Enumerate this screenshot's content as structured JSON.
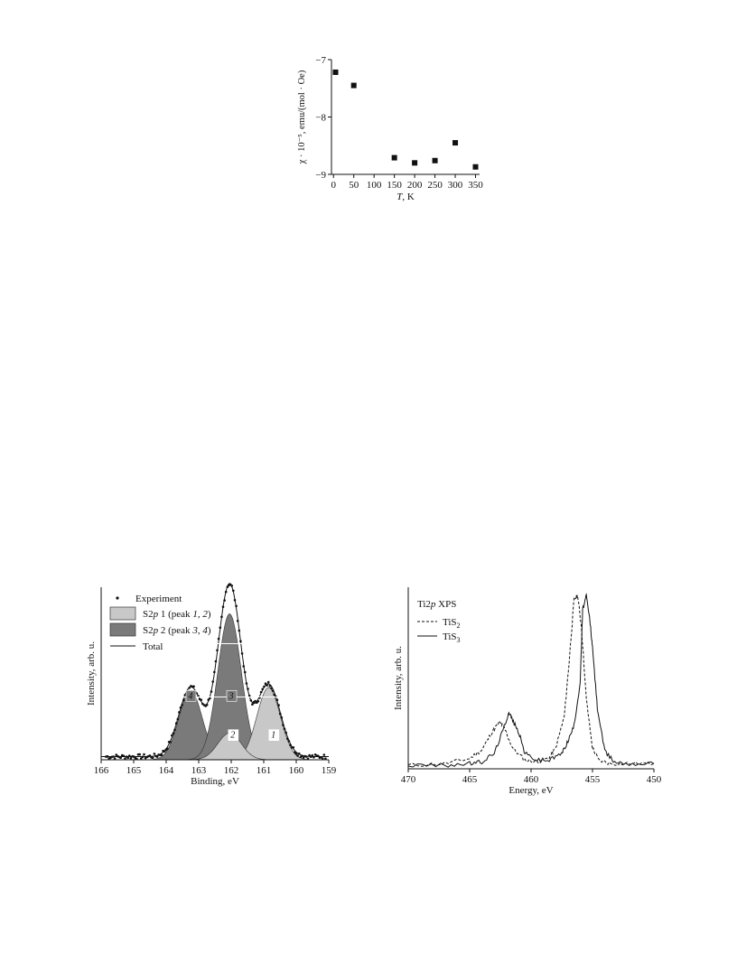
{
  "chart_data": [
    {
      "type": "scatter",
      "title": "",
      "xlabel_italic": "T",
      "xlabel_rest": ", K",
      "ylabel": "χ · 10⁻⁵, emu/(mol · Oe)",
      "xlim": [
        -5,
        360
      ],
      "ylim": [
        -9,
        -7
      ],
      "xticks": [
        0,
        50,
        100,
        150,
        200,
        250,
        300,
        350
      ],
      "yticks": [
        -7,
        -8,
        -9
      ],
      "ytick_labels": [
        "−7",
        "−8",
        "−9"
      ],
      "series": [
        {
          "marker": "square",
          "x": [
            5,
            50,
            150,
            200,
            250,
            300,
            350
          ],
          "y": [
            -7.22,
            -7.45,
            -8.71,
            -8.8,
            -8.76,
            -8.45,
            -8.87
          ]
        }
      ]
    },
    {
      "type": "line",
      "title": "",
      "xlabel": "Binding, eV",
      "ylabel": "Intensity, arb. u.",
      "xlim": [
        166,
        159
      ],
      "ylim": [
        0,
        1.1
      ],
      "xticks": [
        166,
        165,
        164,
        163,
        162,
        161,
        160,
        159
      ],
      "legend": [
        {
          "label_parts": [
            "S2",
            "p",
            " 1 (peak ",
            "1",
            ", ",
            "2",
            ")"
          ],
          "swatch": "#c8c8c8"
        },
        {
          "label_parts": [
            "S2",
            "p",
            " 2 (peak ",
            "3",
            ", ",
            "4",
            ")"
          ],
          "swatch": "#7a7a7a"
        },
        {
          "label": "Experiment",
          "marker": "dot"
        },
        {
          "label": "Total",
          "marker": "line"
        }
      ],
      "peaks": [
        {
          "label": "1",
          "center": 160.85,
          "amplitude": 0.46,
          "fwhm": 0.85,
          "group": "S2p 1"
        },
        {
          "label": "2",
          "center": 162.05,
          "amplitude": 0.17,
          "fwhm": 0.85,
          "group": "S2p 1"
        },
        {
          "label": "3",
          "center": 162.05,
          "amplitude": 0.93,
          "fwhm": 0.85,
          "group": "S2p 2"
        },
        {
          "label": "4",
          "center": 163.25,
          "amplitude": 0.44,
          "fwhm": 0.85,
          "group": "S2p 2"
        }
      ],
      "colors": {
        "s2p1": "#c8c8c8",
        "s2p2": "#7a7a7a"
      }
    },
    {
      "type": "line",
      "title": "",
      "xlabel": "Energy, eV",
      "ylabel": "Intensity, arb. u.",
      "xlim": [
        470,
        450
      ],
      "ylim": [
        0,
        1.05
      ],
      "xticks": [
        470,
        465,
        460,
        455,
        450
      ],
      "legend_title_parts": [
        "Ti2",
        "p",
        " XPS"
      ],
      "series": [
        {
          "name_base": "TiS",
          "name_sub": "2",
          "style": "dashed",
          "x": [
            470,
            467,
            465,
            464,
            463.2,
            462.6,
            462.2,
            461.5,
            460.5,
            459.5,
            458.6,
            458.0,
            457.3,
            456.9,
            456.5,
            456.2,
            455.9,
            455.5,
            455.0,
            454.5,
            453.5,
            452,
            450
          ],
          "y": [
            0.02,
            0.03,
            0.06,
            0.11,
            0.21,
            0.27,
            0.24,
            0.12,
            0.05,
            0.04,
            0.06,
            0.12,
            0.3,
            0.62,
            0.98,
            1.0,
            0.82,
            0.4,
            0.12,
            0.05,
            0.03,
            0.03,
            0.03
          ]
        },
        {
          "name_base": "TiS",
          "name_sub": "3",
          "style": "solid",
          "x": [
            470,
            467,
            465,
            464,
            463.0,
            462.3,
            461.8,
            461.5,
            461.0,
            460.5,
            459.5,
            458.5,
            457.5,
            457.0,
            456.5,
            456.0,
            455.8,
            455.5,
            455.2,
            455.0,
            454.6,
            454.0,
            453.2,
            452,
            450
          ],
          "y": [
            0.02,
            0.02,
            0.03,
            0.04,
            0.09,
            0.22,
            0.33,
            0.28,
            0.21,
            0.09,
            0.05,
            0.05,
            0.09,
            0.16,
            0.25,
            0.5,
            0.92,
            1.0,
            0.85,
            0.7,
            0.35,
            0.1,
            0.04,
            0.03,
            0.03
          ]
        }
      ]
    }
  ]
}
